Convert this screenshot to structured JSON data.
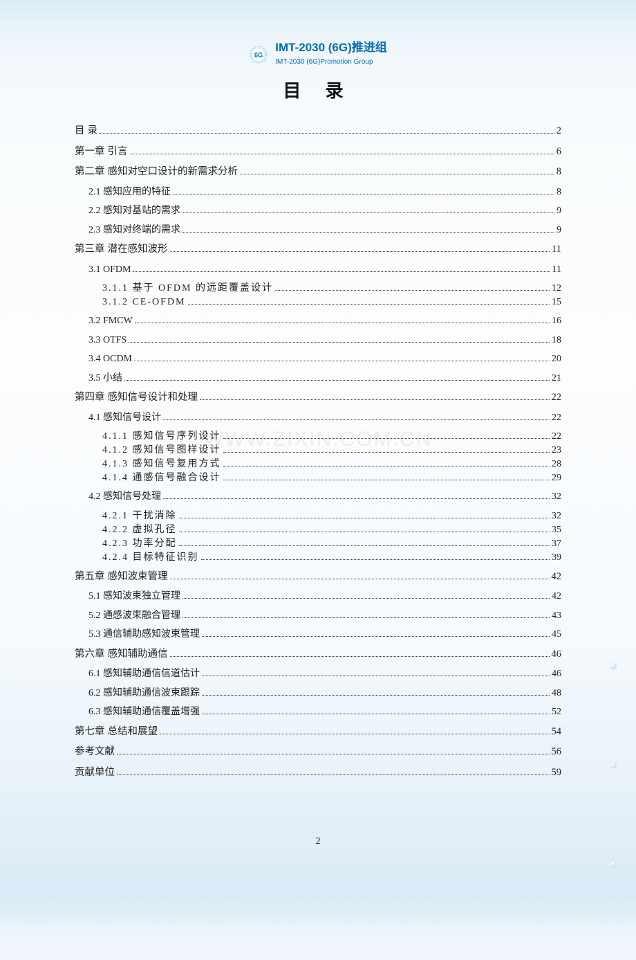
{
  "logo": {
    "title": "IMT-2030 (6G)推进组",
    "subtitle": "IMT-2030 (6G)Promotion Group",
    "badge_text": "6G",
    "colors": {
      "brand": "#006db2",
      "ring": "#59c1e8"
    }
  },
  "heading": "目 录",
  "watermark": "WWW.ZIXIN.COM.CN",
  "page_number": "2",
  "toc": [
    {
      "level": 0,
      "label": "目  录",
      "page": "2"
    },
    {
      "level": 0,
      "label": "第一章  引言",
      "page": "6"
    },
    {
      "level": 0,
      "label": "第二章  感知对空口设计的新需求分析",
      "page": "8"
    },
    {
      "level": 1,
      "label": "2.1 感知应用的特征",
      "page": "8"
    },
    {
      "level": 1,
      "label": "2.2 感知对基站的需求",
      "page": "9"
    },
    {
      "level": 1,
      "label": "2.3 感知对终端的需求",
      "page": "9"
    },
    {
      "level": 0,
      "label": "第三章  潜在感知波形",
      "page": "11"
    },
    {
      "level": 1,
      "label": "3.1 OFDM",
      "page": "11"
    },
    {
      "level": 2,
      "label": "3.1.1 基于 OFDM 的远距覆盖设计",
      "page": "12",
      "gap_after": false
    },
    {
      "level": 2,
      "label": "3.1.2 CE-OFDM",
      "page": "15",
      "gap_after": true
    },
    {
      "level": 1,
      "label": "3.2 FMCW",
      "page": "16"
    },
    {
      "level": 1,
      "label": "3.3 OTFS",
      "page": "18"
    },
    {
      "level": 1,
      "label": "3.4 OCDM",
      "page": "20"
    },
    {
      "level": 1,
      "label": "3.5 小结",
      "page": "21"
    },
    {
      "level": 0,
      "label": "第四章  感知信号设计和处理",
      "page": "22"
    },
    {
      "level": 1,
      "label": "4.1 感知信号设计",
      "page": "22"
    },
    {
      "level": 2,
      "label": "4.1.1 感知信号序列设计",
      "page": "22"
    },
    {
      "level": 2,
      "label": "4.1.2 感知信号图样设计",
      "page": "23"
    },
    {
      "level": 2,
      "label": "4.1.3 感知信号复用方式",
      "page": "28"
    },
    {
      "level": 2,
      "label": "4.1.4 通感信号融合设计",
      "page": "29",
      "gap_after": true
    },
    {
      "level": 1,
      "label": "4.2 感知信号处理",
      "page": "32"
    },
    {
      "level": 2,
      "label": "4.2.1 干扰消除",
      "page": "32"
    },
    {
      "level": 2,
      "label": "4.2.2 虚拟孔径",
      "page": "35"
    },
    {
      "level": 2,
      "label": "4.2.3 功率分配",
      "page": "37"
    },
    {
      "level": 2,
      "label": "4.2.4 目标特征识别",
      "page": "39",
      "gap_after": true
    },
    {
      "level": 0,
      "label": "第五章  感知波束管理",
      "page": "42"
    },
    {
      "level": 1,
      "label": "5.1 感知波束独立管理",
      "page": "42"
    },
    {
      "level": 1,
      "label": "5.2 通感波束融合管理",
      "page": "43"
    },
    {
      "level": 1,
      "label": "5.3 通信辅助感知波束管理",
      "page": "45"
    },
    {
      "level": 0,
      "label": "第六章  感知辅助通信",
      "page": "46"
    },
    {
      "level": 1,
      "label": "6.1 感知辅助通信信道估计",
      "page": "46"
    },
    {
      "level": 1,
      "label": "6.2 感知辅助通信波束跟踪",
      "page": "48"
    },
    {
      "level": 1,
      "label": "6.3 感知辅助通信覆盖增强",
      "page": "52"
    },
    {
      "level": 0,
      "label": "第七章  总结和展望",
      "page": "54"
    },
    {
      "level": 0,
      "label": "参考文献",
      "page": "56"
    },
    {
      "level": 0,
      "label": "贡献单位",
      "page": "59"
    }
  ]
}
